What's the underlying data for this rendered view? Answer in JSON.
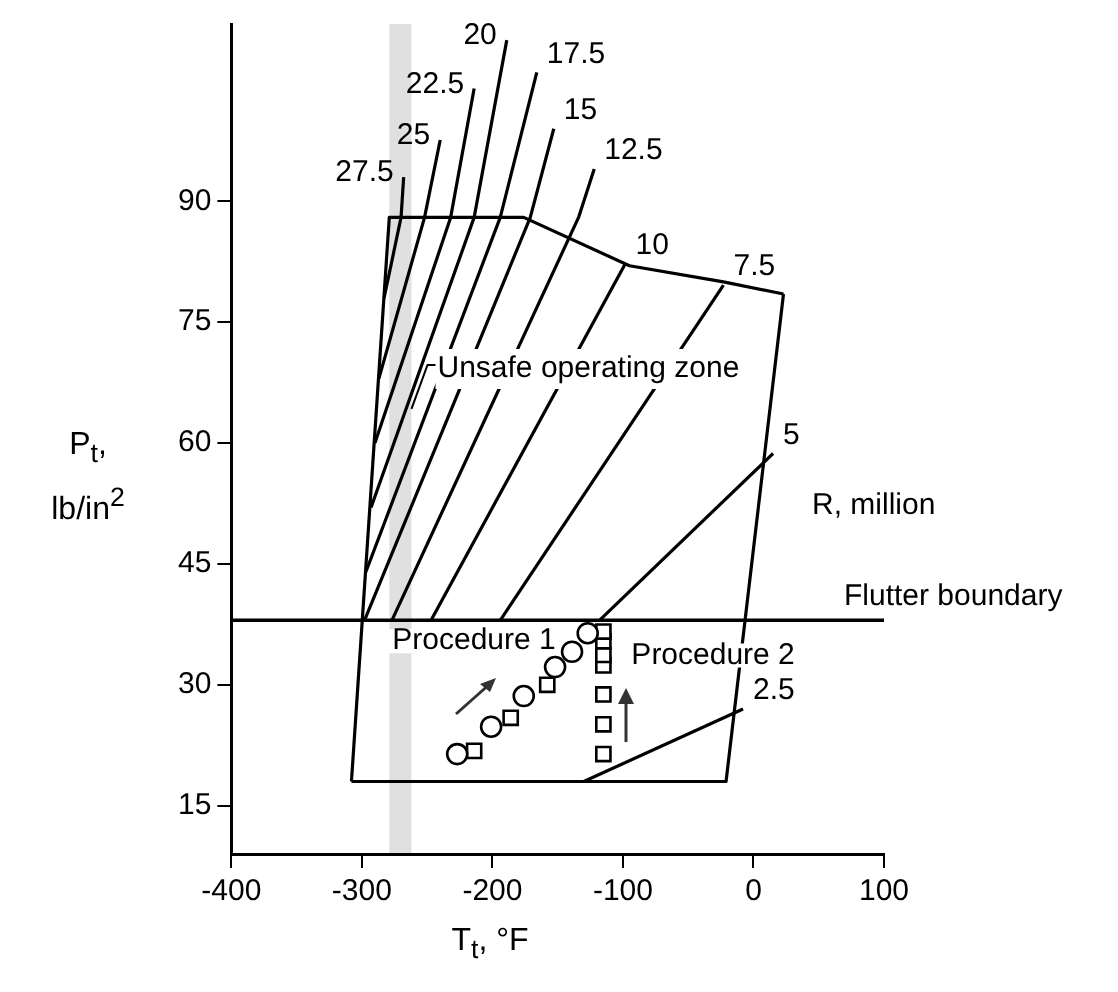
{
  "chart_data": {
    "type": "line",
    "xlabel": "T$_{t}$, °F",
    "ylabel": "P$_{t}$, lb/in$^{2}$",
    "xlim": [
      -400,
      100
    ],
    "xticks": [
      -400,
      -300,
      -200,
      -100,
      0,
      100
    ],
    "ylim": [
      9,
      112
    ],
    "yticks": [
      15,
      30,
      45,
      60,
      75,
      90
    ],
    "grid": false,
    "legend": false,
    "marker": "none",
    "series": [
      {
        "color": "#000000",
        "x": [
          -308,
          -279,
          -176,
          -95,
          -23,
          23
        ],
        "values": [
          18,
          88,
          88,
          82,
          80,
          78.5
        ]
      },
      {
        "color": "#000000",
        "x": [
          -308,
          -21,
          23
        ],
        "values": [
          18,
          18,
          78.5
        ]
      },
      {
        "name": "2.5",
        "color": "#000000",
        "x": [
          -130,
          -8
        ],
        "values": [
          18,
          27
        ]
      },
      {
        "name": "5",
        "color": "#000000",
        "x": [
          -118,
          15
        ],
        "values": [
          38,
          58.7
        ]
      },
      {
        "name": "7.5",
        "color": "#000000",
        "x": [
          -194,
          -23
        ],
        "values": [
          38,
          79.6
        ]
      },
      {
        "name": "10",
        "color": "#000000",
        "x": [
          -247,
          -98
        ],
        "values": [
          38,
          82.3
        ]
      },
      {
        "name": "12.5",
        "color": "#000000",
        "x": [
          -277,
          -134,
          -122
        ],
        "values": [
          38,
          88,
          94
        ]
      },
      {
        "name": "15",
        "color": "#000000",
        "x": [
          -298,
          -171,
          -153
        ],
        "values": [
          38,
          88,
          99
        ]
      },
      {
        "name": "17.5",
        "color": "#000000",
        "x": [
          -297,
          -194,
          -166
        ],
        "values": [
          44,
          88,
          106
        ]
      },
      {
        "name": "20",
        "color": "#000000",
        "x": [
          -293,
          -214,
          -189
        ],
        "values": [
          52,
          88,
          110
        ]
      },
      {
        "name": "22.5",
        "color": "#000000",
        "x": [
          -290,
          -232,
          -214
        ],
        "values": [
          60,
          88,
          104
        ]
      },
      {
        "name": "25",
        "color": "#000000",
        "x": [
          -287,
          -252,
          -240
        ],
        "values": [
          68,
          88,
          97.6
        ]
      },
      {
        "name": "27.5",
        "color": "#000000",
        "x": [
          -283,
          -270,
          -268
        ],
        "values": [
          78,
          88,
          93
        ]
      },
      {
        "name": "Procedure 1",
        "type": "scatter",
        "color": "#000000",
        "marker": "circle",
        "x": [
          -227,
          -201,
          -176,
          -152,
          -139,
          -127
        ],
        "values": [
          21.4,
          24.8,
          28.6,
          32.2,
          34.1,
          36.4
        ]
      },
      {
        "type": "scatter",
        "color": "#000000",
        "marker": "square",
        "x": [
          -214,
          -186,
          -158
        ],
        "values": [
          21.8,
          25.9,
          30
        ]
      },
      {
        "name": "Procedure 2",
        "type": "scatter",
        "color": "#000000",
        "marker": "square",
        "x": [
          -115,
          -115,
          -115,
          -115,
          -115,
          -115,
          -115
        ],
        "values": [
          21.4,
          25.1,
          28.8,
          32.4,
          33.7,
          35.4,
          36.6
        ]
      }
    ],
    "ref_lines": [
      {
        "axis": "y",
        "value": 38,
        "label": "Flutter boundary",
        "color": "#000000"
      }
    ],
    "bands": [
      {
        "axis": "x",
        "from": -279,
        "to": -262,
        "label": "Unsafe operating zone"
      }
    ],
    "annotations": [
      "R, million"
    ]
  }
}
